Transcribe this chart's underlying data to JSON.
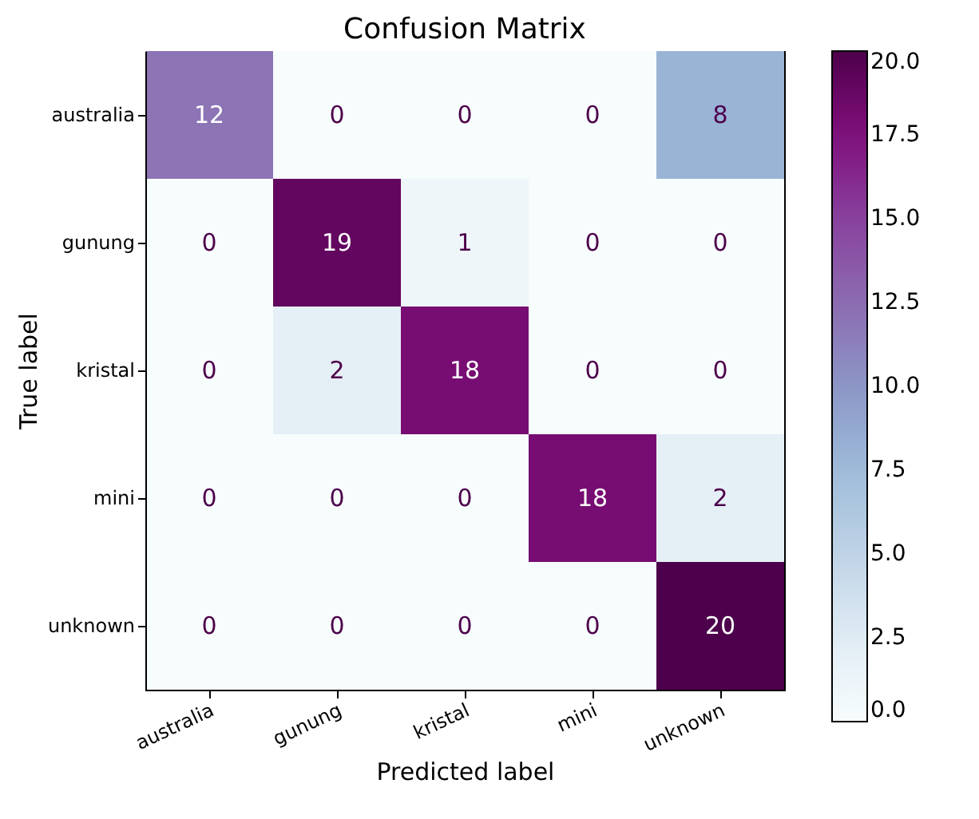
{
  "chart_data": {
    "type": "heatmap",
    "title": "Confusion Matrix",
    "xlabel": "Predicted label",
    "ylabel": "True label",
    "categories": [
      "australia",
      "gunung",
      "kristal",
      "mini",
      "unknown"
    ],
    "y_categories": [
      "australia",
      "gunung",
      "kristal",
      "mini",
      "unknown"
    ],
    "cells": [
      [
        12,
        0,
        0,
        0,
        8
      ],
      [
        0,
        19,
        1,
        0,
        0
      ],
      [
        0,
        2,
        18,
        0,
        0
      ],
      [
        0,
        0,
        0,
        18,
        2
      ],
      [
        0,
        0,
        0,
        0,
        20
      ]
    ],
    "clim": [
      0,
      20
    ],
    "cticks": [
      {
        "value": 0,
        "label": "0.0"
      },
      {
        "value": 2.5,
        "label": "2.5"
      },
      {
        "value": 5,
        "label": "5.0"
      },
      {
        "value": 7.5,
        "label": "7.5"
      },
      {
        "value": 10,
        "label": "10.0"
      },
      {
        "value": 12.5,
        "label": "12.5"
      },
      {
        "value": 15,
        "label": "15.0"
      },
      {
        "value": 17.5,
        "label": "17.5"
      },
      {
        "value": 20,
        "label": "20.0"
      }
    ],
    "data_labels": true,
    "grid": false
  }
}
